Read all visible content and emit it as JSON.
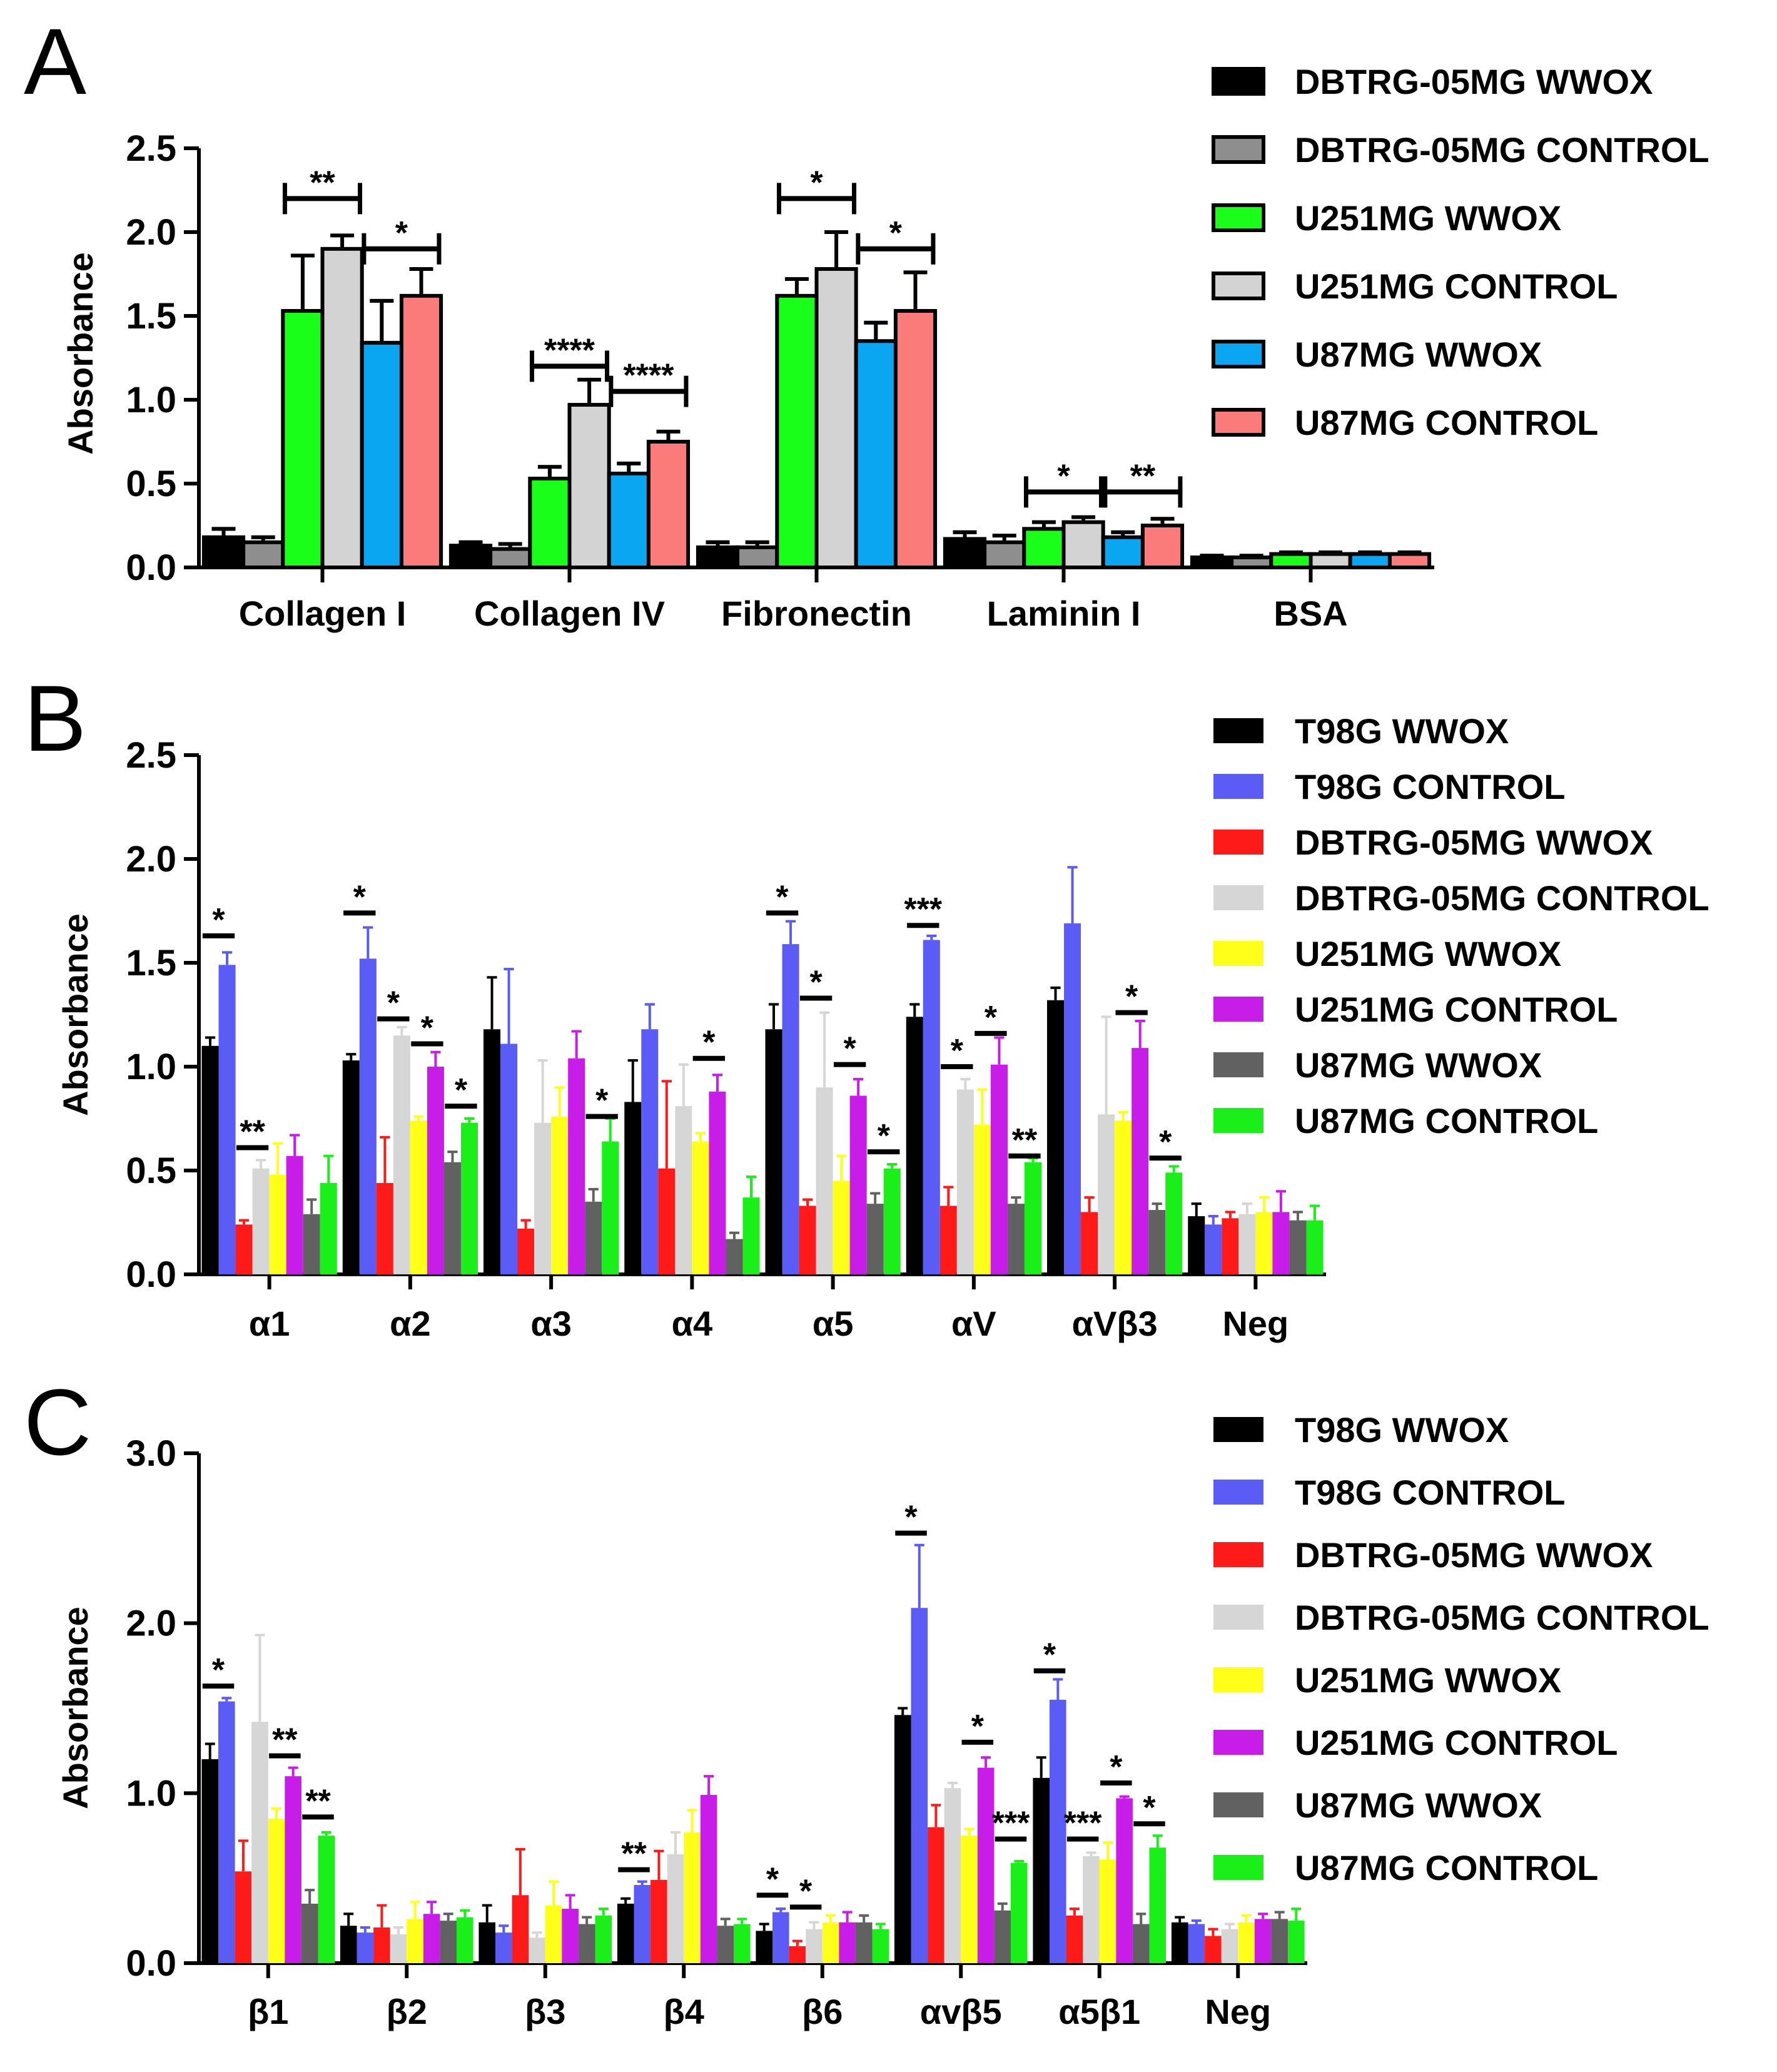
{
  "chart_data": [
    {
      "panel": "A",
      "type": "bar",
      "title": "",
      "xlabel": "",
      "ylabel": "Absorbance",
      "ylim": [
        0,
        2.5
      ],
      "yticks": [
        "0.0",
        "0.5",
        "1.0",
        "1.5",
        "2.0",
        "2.5"
      ],
      "categories": [
        "Collagen I",
        "Collagen IV",
        "Fibronectin",
        "Laminin I",
        "BSA"
      ],
      "legend_position": "top-right",
      "series": [
        {
          "name": "DBTRG-05MG WWOX",
          "color": "#000000",
          "values": [
            0.18,
            0.13,
            0.12,
            0.17,
            0.06
          ],
          "errors": [
            0.05,
            0.02,
            0.03,
            0.04,
            0.01
          ]
        },
        {
          "name": "DBTRG-05MG CONTROL",
          "color": "#8e8e8e",
          "values": [
            0.15,
            0.11,
            0.12,
            0.15,
            0.06
          ],
          "errors": [
            0.03,
            0.03,
            0.03,
            0.04,
            0.01
          ]
        },
        {
          "name": "U251MG WWOX",
          "color": "#1aff1a",
          "values": [
            1.53,
            0.53,
            1.62,
            0.23,
            0.08
          ],
          "errors": [
            0.33,
            0.07,
            0.1,
            0.04,
            0.01
          ]
        },
        {
          "name": "U251MG CONTROL",
          "color": "#d3d3d3",
          "values": [
            1.9,
            0.97,
            1.78,
            0.27,
            0.08
          ],
          "errors": [
            0.08,
            0.15,
            0.22,
            0.03,
            0.01
          ]
        },
        {
          "name": "U87MG WWOX",
          "color": "#0aa6f2",
          "values": [
            1.34,
            0.56,
            1.35,
            0.18,
            0.08
          ],
          "errors": [
            0.25,
            0.06,
            0.11,
            0.03,
            0.01
          ]
        },
        {
          "name": "U87MG CONTROL",
          "color": "#fb7a7a",
          "values": [
            1.62,
            0.75,
            1.53,
            0.25,
            0.08
          ],
          "errors": [
            0.16,
            0.06,
            0.23,
            0.04,
            0.01
          ]
        }
      ],
      "significance": [
        {
          "category": 0,
          "series": [
            2,
            3
          ],
          "label": "**",
          "level": 2.2
        },
        {
          "category": 0,
          "series": [
            4,
            5
          ],
          "label": "*",
          "level": 1.9
        },
        {
          "category": 1,
          "series": [
            2,
            3
          ],
          "label": "****",
          "level": 1.2
        },
        {
          "category": 1,
          "series": [
            4,
            5
          ],
          "label": "****",
          "level": 1.05
        },
        {
          "category": 2,
          "series": [
            2,
            3
          ],
          "label": "*",
          "level": 2.2
        },
        {
          "category": 2,
          "series": [
            4,
            5
          ],
          "label": "*",
          "level": 1.9
        },
        {
          "category": 3,
          "series": [
            2,
            3
          ],
          "label": "*",
          "level": 0.45
        },
        {
          "category": 3,
          "series": [
            4,
            5
          ],
          "label": "**",
          "level": 0.45
        }
      ]
    },
    {
      "panel": "B",
      "type": "bar",
      "title": "",
      "xlabel": "",
      "ylabel": "Absorbance",
      "ylim": [
        0,
        2.5
      ],
      "yticks": [
        "0.0",
        "0.5",
        "1.0",
        "1.5",
        "2.0",
        "2.5"
      ],
      "categories": [
        "α1",
        "α2",
        "α3",
        "α4",
        "α5",
        "αV",
        "αVβ3",
        "Neg"
      ],
      "legend_position": "top-right",
      "series": [
        {
          "name": "T98G WWOX",
          "color": "#000000",
          "values": [
            1.1,
            1.03,
            1.18,
            0.83,
            1.18,
            1.24,
            1.32,
            0.28
          ],
          "errors": [
            0.04,
            0.03,
            0.25,
            0.2,
            0.12,
            0.06,
            0.06,
            0.06
          ]
        },
        {
          "name": "T98G CONTROL",
          "color": "#5b5bf5",
          "values": [
            1.49,
            1.52,
            1.11,
            1.18,
            1.59,
            1.61,
            1.69,
            0.24
          ],
          "errors": [
            0.06,
            0.15,
            0.36,
            0.12,
            0.11,
            0.02,
            0.27,
            0.04
          ]
        },
        {
          "name": "DBTRG-05MG WWOX",
          "color": "#ff1a1a",
          "values": [
            0.24,
            0.44,
            0.22,
            0.51,
            0.33,
            0.33,
            0.3,
            0.27
          ],
          "errors": [
            0.02,
            0.22,
            0.04,
            0.42,
            0.03,
            0.09,
            0.07,
            0.03
          ]
        },
        {
          "name": "DBTRG-05MG CONTROL",
          "color": "#d6d6d6",
          "values": [
            0.51,
            1.15,
            0.73,
            0.81,
            0.9,
            0.89,
            0.77,
            0.29
          ],
          "errors": [
            0.04,
            0.04,
            0.3,
            0.2,
            0.36,
            0.05,
            0.47,
            0.05
          ]
        },
        {
          "name": "U251MG WWOX",
          "color": "#ffff1a",
          "values": [
            0.48,
            0.74,
            0.76,
            0.64,
            0.45,
            0.72,
            0.74,
            0.3
          ],
          "errors": [
            0.15,
            0.02,
            0.14,
            0.04,
            0.12,
            0.17,
            0.04,
            0.07
          ]
        },
        {
          "name": "U251MG CONTROL",
          "color": "#c81ce8",
          "values": [
            0.57,
            1.0,
            1.04,
            0.88,
            0.86,
            1.01,
            1.09,
            0.3
          ],
          "errors": [
            0.1,
            0.07,
            0.13,
            0.08,
            0.08,
            0.13,
            0.13,
            0.1
          ]
        },
        {
          "name": "U87MG WWOX",
          "color": "#616161",
          "values": [
            0.29,
            0.54,
            0.35,
            0.17,
            0.34,
            0.34,
            0.31,
            0.26
          ],
          "errors": [
            0.07,
            0.05,
            0.06,
            0.03,
            0.05,
            0.03,
            0.03,
            0.04
          ]
        },
        {
          "name": "U87MG CONTROL",
          "color": "#1aef1a",
          "values": [
            0.44,
            0.73,
            0.64,
            0.37,
            0.51,
            0.54,
            0.49,
            0.26
          ],
          "errors": [
            0.13,
            0.02,
            0.11,
            0.1,
            0.02,
            0.02,
            0.03,
            0.07
          ]
        }
      ],
      "significance": [
        {
          "category": 0,
          "series": [
            0,
            1
          ],
          "label": "*",
          "level": 1.63
        },
        {
          "category": 0,
          "series": [
            2,
            3
          ],
          "label": "**",
          "level": 0.61
        },
        {
          "category": 1,
          "series": [
            0,
            1
          ],
          "label": "*",
          "level": 1.74
        },
        {
          "category": 1,
          "series": [
            2,
            3
          ],
          "label": "*",
          "level": 1.23
        },
        {
          "category": 1,
          "series": [
            4,
            5
          ],
          "label": "*",
          "level": 1.11
        },
        {
          "category": 1,
          "series": [
            6,
            7
          ],
          "label": "*",
          "level": 0.81
        },
        {
          "category": 2,
          "series": [
            6,
            7
          ],
          "label": "*",
          "level": 0.76
        },
        {
          "category": 3,
          "series": [
            4,
            5
          ],
          "label": "*",
          "level": 1.04
        },
        {
          "category": 4,
          "series": [
            0,
            1
          ],
          "label": "*",
          "level": 1.74
        },
        {
          "category": 4,
          "series": [
            2,
            3
          ],
          "label": "*",
          "level": 1.33
        },
        {
          "category": 4,
          "series": [
            4,
            5
          ],
          "label": "*",
          "level": 1.01
        },
        {
          "category": 4,
          "series": [
            6,
            7
          ],
          "label": "*",
          "level": 0.59
        },
        {
          "category": 5,
          "series": [
            0,
            1
          ],
          "label": "***",
          "level": 1.68
        },
        {
          "category": 5,
          "series": [
            2,
            3
          ],
          "label": "*",
          "level": 1.0
        },
        {
          "category": 5,
          "series": [
            4,
            5
          ],
          "label": "*",
          "level": 1.16
        },
        {
          "category": 5,
          "series": [
            6,
            7
          ],
          "label": "**",
          "level": 0.57
        },
        {
          "category": 6,
          "series": [
            4,
            5
          ],
          "label": "*",
          "level": 1.26
        },
        {
          "category": 6,
          "series": [
            6,
            7
          ],
          "label": "*",
          "level": 0.56
        }
      ]
    },
    {
      "panel": "C",
      "type": "bar",
      "title": "",
      "xlabel": "",
      "ylabel": "Absorbance",
      "ylim": [
        0,
        3.0
      ],
      "yticks": [
        "0.0",
        "1.0",
        "2.0",
        "3.0"
      ],
      "categories": [
        "β1",
        "β2",
        "β3",
        "β4",
        "β6",
        "αvβ5",
        "α5β1",
        "Neg"
      ],
      "legend_position": "top-right",
      "series": [
        {
          "name": "T98G WWOX",
          "color": "#000000",
          "values": [
            1.2,
            0.22,
            0.24,
            0.35,
            0.19,
            1.46,
            1.09,
            0.24
          ],
          "errors": [
            0.09,
            0.07,
            0.1,
            0.03,
            0.04,
            0.04,
            0.12,
            0.03
          ]
        },
        {
          "name": "T98G CONTROL",
          "color": "#5b5bf5",
          "values": [
            1.54,
            0.18,
            0.18,
            0.46,
            0.3,
            2.09,
            1.55,
            0.23
          ],
          "errors": [
            0.02,
            0.03,
            0.04,
            0.02,
            0.02,
            0.37,
            0.12,
            0.02
          ]
        },
        {
          "name": "DBTRG-05MG WWOX",
          "color": "#ff1a1a",
          "values": [
            0.54,
            0.21,
            0.4,
            0.49,
            0.1,
            0.8,
            0.28,
            0.16
          ],
          "errors": [
            0.18,
            0.13,
            0.27,
            0.17,
            0.03,
            0.13,
            0.04,
            0.04
          ]
        },
        {
          "name": "DBTRG-05MG CONTROL",
          "color": "#d6d6d6",
          "values": [
            1.42,
            0.17,
            0.15,
            0.64,
            0.2,
            1.03,
            0.63,
            0.2
          ],
          "errors": [
            0.51,
            0.04,
            0.03,
            0.13,
            0.04,
            0.03,
            0.02,
            0.03
          ]
        },
        {
          "name": "U251MG WWOX",
          "color": "#ffff1a",
          "values": [
            0.85,
            0.26,
            0.34,
            0.77,
            0.24,
            0.75,
            0.61,
            0.24
          ],
          "errors": [
            0.06,
            0.1,
            0.14,
            0.13,
            0.04,
            0.04,
            0.1,
            0.04
          ]
        },
        {
          "name": "U251MG CONTROL",
          "color": "#c81ce8",
          "values": [
            1.1,
            0.29,
            0.32,
            0.99,
            0.24,
            1.15,
            0.97,
            0.26
          ],
          "errors": [
            0.05,
            0.07,
            0.08,
            0.11,
            0.06,
            0.06,
            0.01,
            0.03
          ]
        },
        {
          "name": "U87MG WWOX",
          "color": "#616161",
          "values": [
            0.35,
            0.25,
            0.23,
            0.22,
            0.24,
            0.31,
            0.23,
            0.26
          ],
          "errors": [
            0.08,
            0.04,
            0.04,
            0.04,
            0.04,
            0.04,
            0.06,
            0.04
          ]
        },
        {
          "name": "U87MG CONTROL",
          "color": "#1aef1a",
          "values": [
            0.75,
            0.27,
            0.28,
            0.23,
            0.2,
            0.59,
            0.68,
            0.25
          ],
          "errors": [
            0.02,
            0.04,
            0.04,
            0.03,
            0.03,
            0.01,
            0.07,
            0.07
          ]
        }
      ],
      "significance": [
        {
          "category": 0,
          "series": [
            0,
            1
          ],
          "label": "*",
          "level": 1.63
        },
        {
          "category": 0,
          "series": [
            4,
            5
          ],
          "label": "**",
          "level": 1.22
        },
        {
          "category": 0,
          "series": [
            6,
            7
          ],
          "label": "**",
          "level": 0.86
        },
        {
          "category": 3,
          "series": [
            0,
            1
          ],
          "label": "**",
          "level": 0.55
        },
        {
          "category": 4,
          "series": [
            0,
            1
          ],
          "label": "*",
          "level": 0.4
        },
        {
          "category": 4,
          "series": [
            2,
            3
          ],
          "label": "*",
          "level": 0.33
        },
        {
          "category": 5,
          "series": [
            0,
            1
          ],
          "label": "*",
          "level": 2.53
        },
        {
          "category": 5,
          "series": [
            4,
            5
          ],
          "label": "*",
          "level": 1.3
        },
        {
          "category": 5,
          "series": [
            6,
            7
          ],
          "label": "***",
          "level": 0.73
        },
        {
          "category": 6,
          "series": [
            0,
            1
          ],
          "label": "*",
          "level": 1.72
        },
        {
          "category": 6,
          "series": [
            2,
            3
          ],
          "label": "***",
          "level": 0.73
        },
        {
          "category": 6,
          "series": [
            4,
            5
          ],
          "label": "*",
          "level": 1.06
        },
        {
          "category": 6,
          "series": [
            6,
            7
          ],
          "label": "*",
          "level": 0.82
        }
      ]
    }
  ]
}
